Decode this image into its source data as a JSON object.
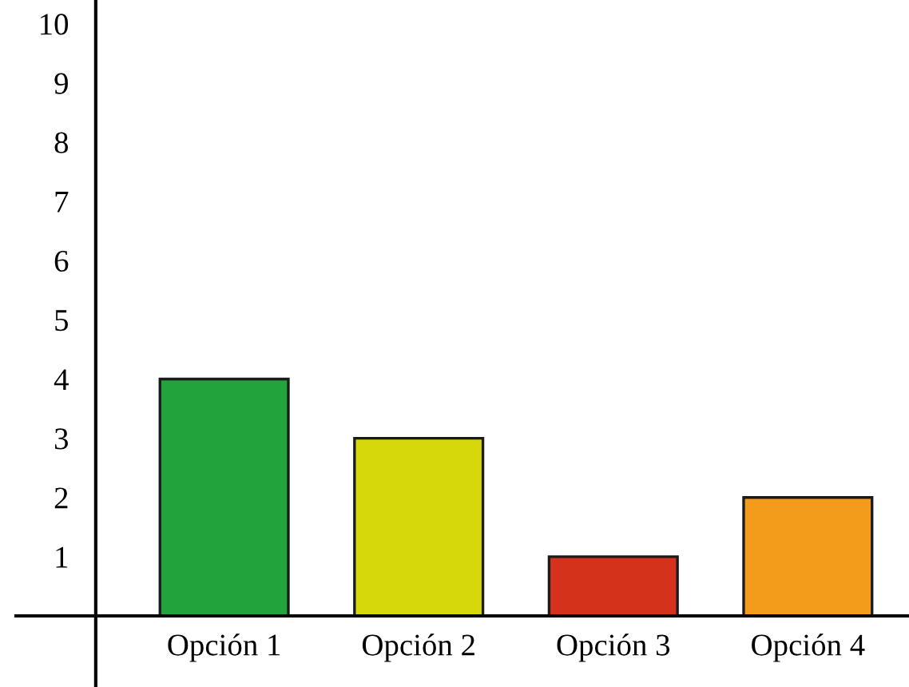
{
  "chart_data": {
    "type": "bar",
    "categories": [
      "Opción 1",
      "Opción 2",
      "Opción 3",
      "Opción 4"
    ],
    "values": [
      4,
      3,
      1,
      2
    ],
    "colors": [
      "#22a33c",
      "#d6d80c",
      "#d4321b",
      "#f39c1c"
    ],
    "ylim": [
      -1.2,
      10.4
    ],
    "yticks": [
      1,
      2,
      3,
      4,
      5,
      6,
      7,
      8,
      9,
      10
    ],
    "grid": false,
    "legend": false
  }
}
